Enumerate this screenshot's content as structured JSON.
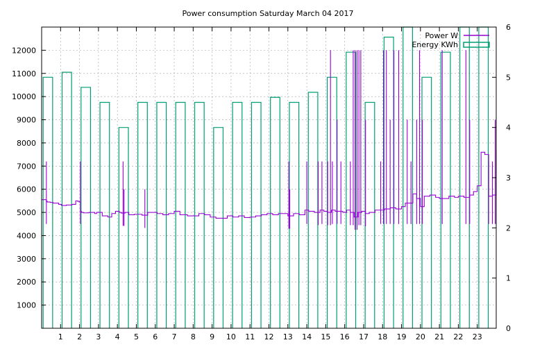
{
  "chart_data": {
    "type": "line",
    "title": "Power consumption Saturday March 04 2017",
    "xlabel": "",
    "ylabel": "",
    "y2label": "",
    "xlim": [
      0,
      24
    ],
    "ylim": [
      0,
      13000
    ],
    "y2lim": [
      0,
      6
    ],
    "grid": true,
    "legend_position": "top-right",
    "x_ticks": [
      "1",
      "2",
      "3",
      "4",
      "5",
      "6",
      "7",
      "8",
      "9",
      "10",
      "11",
      "12",
      "13",
      "14",
      "15",
      "16",
      "17",
      "18",
      "19",
      "20",
      "21",
      "22",
      "23"
    ],
    "y_ticks": [
      "1000",
      "2000",
      "3000",
      "4000",
      "5000",
      "6000",
      "7000",
      "8000",
      "9000",
      "10000",
      "11000",
      "12000"
    ],
    "y2_ticks": [
      "0",
      "1",
      "2",
      "3",
      "4",
      "5",
      "6"
    ],
    "colors": {
      "power": "#9400d3",
      "energy": "#009e73",
      "grid": "#a0a0a0"
    },
    "series": [
      {
        "name": "Power W",
        "axis": "y",
        "style": "line",
        "x": [
          0.0,
          0.15,
          0.25,
          0.3,
          0.45,
          0.6,
          0.9,
          1.05,
          1.3,
          1.6,
          1.8,
          1.9,
          1.98,
          2.05,
          2.1,
          2.2,
          2.5,
          2.8,
          2.9,
          3.2,
          3.5,
          3.7,
          3.9,
          4.1,
          4.2,
          4.4,
          4.6,
          4.9,
          5.3,
          5.6,
          5.8,
          6.1,
          6.4,
          6.7,
          7.0,
          7.3,
          7.7,
          8.0,
          8.3,
          8.6,
          8.9,
          9.2,
          9.5,
          9.8,
          10.1,
          10.4,
          10.7,
          11.0,
          11.3,
          11.6,
          11.9,
          12.2,
          12.5,
          12.8,
          13.0,
          13.3,
          13.6,
          13.9,
          14.1,
          14.4,
          14.7,
          14.9,
          15.1,
          15.3,
          15.5,
          15.7,
          15.9,
          16.1,
          16.3,
          16.5,
          16.7,
          16.9,
          17.1,
          17.3,
          17.6,
          17.9,
          18.1,
          18.4,
          18.7,
          19.0,
          19.2,
          19.4,
          19.6,
          19.8,
          20.0,
          20.2,
          20.5,
          20.8,
          21.0,
          21.2,
          21.5,
          21.8,
          22.0,
          22.3,
          22.6,
          22.8,
          23.0,
          23.2,
          23.4,
          23.6,
          23.8,
          24.0
        ],
        "y": [
          5550,
          5550,
          5480,
          5450,
          5430,
          5400,
          5350,
          5300,
          5320,
          5350,
          5500,
          5480,
          5450,
          5050,
          5000,
          4980,
          5000,
          4950,
          5000,
          4850,
          4800,
          4950,
          5050,
          5000,
          4970,
          5000,
          4900,
          4920,
          4880,
          5000,
          5000,
          4950,
          4900,
          4950,
          5050,
          4900,
          4850,
          4850,
          4950,
          4900,
          4800,
          4750,
          4750,
          4850,
          4800,
          4850,
          4780,
          4800,
          4850,
          4900,
          4950,
          4900,
          4950,
          4950,
          4850,
          4950,
          4900,
          5100,
          5050,
          5000,
          5100,
          5050,
          5000,
          5100,
          5050,
          5050,
          5000,
          5100,
          5000,
          4800,
          5000,
          5050,
          4950,
          5000,
          5100,
          5100,
          5150,
          5200,
          5150,
          5250,
          5400,
          5400,
          5800,
          5600,
          5250,
          5700,
          5750,
          5650,
          5600,
          5600,
          5700,
          5650,
          5700,
          5650,
          5750,
          5900,
          6150,
          7600,
          7500,
          5700,
          5750,
          7700
        ]
      },
      {
        "name": "Energy KWh",
        "axis": "y2",
        "style": "steps",
        "x": [
          0,
          1,
          2,
          3,
          4,
          5,
          6,
          7,
          8,
          9,
          10,
          11,
          12,
          13,
          14,
          15,
          16,
          17,
          18,
          19,
          20,
          21,
          22,
          23
        ],
        "y": [
          5.0,
          5.1,
          4.8,
          4.5,
          4.0,
          4.5,
          4.5,
          4.5,
          4.5,
          4.0,
          4.5,
          4.5,
          4.6,
          4.5,
          4.7,
          5.0,
          5.5,
          4.5,
          5.8,
          6.0,
          5.0,
          5.5,
          6.0,
          6.0
        ]
      }
    ],
    "power_spikes": [
      {
        "x": 0.25,
        "y": 7200
      },
      {
        "x": 2.05,
        "y": 7200
      },
      {
        "x": 4.3,
        "y": 7200
      },
      {
        "x": 4.35,
        "y": 6000
      },
      {
        "x": 5.45,
        "y": 6000
      },
      {
        "x": 13.05,
        "y": 7200
      },
      {
        "x": 13.1,
        "y": 6000
      },
      {
        "x": 14.0,
        "y": 7200
      },
      {
        "x": 14.6,
        "y": 7200
      },
      {
        "x": 14.8,
        "y": 7200
      },
      {
        "x": 15.1,
        "y": 7200
      },
      {
        "x": 15.25,
        "y": 12000
      },
      {
        "x": 15.35,
        "y": 7200
      },
      {
        "x": 15.6,
        "y": 9000
      },
      {
        "x": 15.8,
        "y": 7200
      },
      {
        "x": 16.3,
        "y": 7200
      },
      {
        "x": 16.45,
        "y": 12000
      },
      {
        "x": 16.55,
        "y": 12000
      },
      {
        "x": 16.65,
        "y": 12000
      },
      {
        "x": 16.75,
        "y": 12000
      },
      {
        "x": 16.85,
        "y": 12000
      },
      {
        "x": 17.1,
        "y": 9000
      },
      {
        "x": 17.9,
        "y": 7200
      },
      {
        "x": 18.05,
        "y": 12000
      },
      {
        "x": 18.2,
        "y": 12000
      },
      {
        "x": 18.4,
        "y": 9000
      },
      {
        "x": 18.6,
        "y": 12000
      },
      {
        "x": 18.85,
        "y": 12000
      },
      {
        "x": 19.3,
        "y": 9000
      },
      {
        "x": 19.5,
        "y": 7200
      },
      {
        "x": 19.8,
        "y": 9000
      },
      {
        "x": 19.95,
        "y": 12000
      },
      {
        "x": 20.1,
        "y": 9000
      },
      {
        "x": 21.15,
        "y": 12000
      },
      {
        "x": 22.4,
        "y": 12000
      },
      {
        "x": 22.6,
        "y": 9000
      },
      {
        "x": 23.6,
        "y": 7200
      },
      {
        "x": 23.8,
        "y": 7200
      },
      {
        "x": 23.95,
        "y": 9000
      }
    ]
  }
}
